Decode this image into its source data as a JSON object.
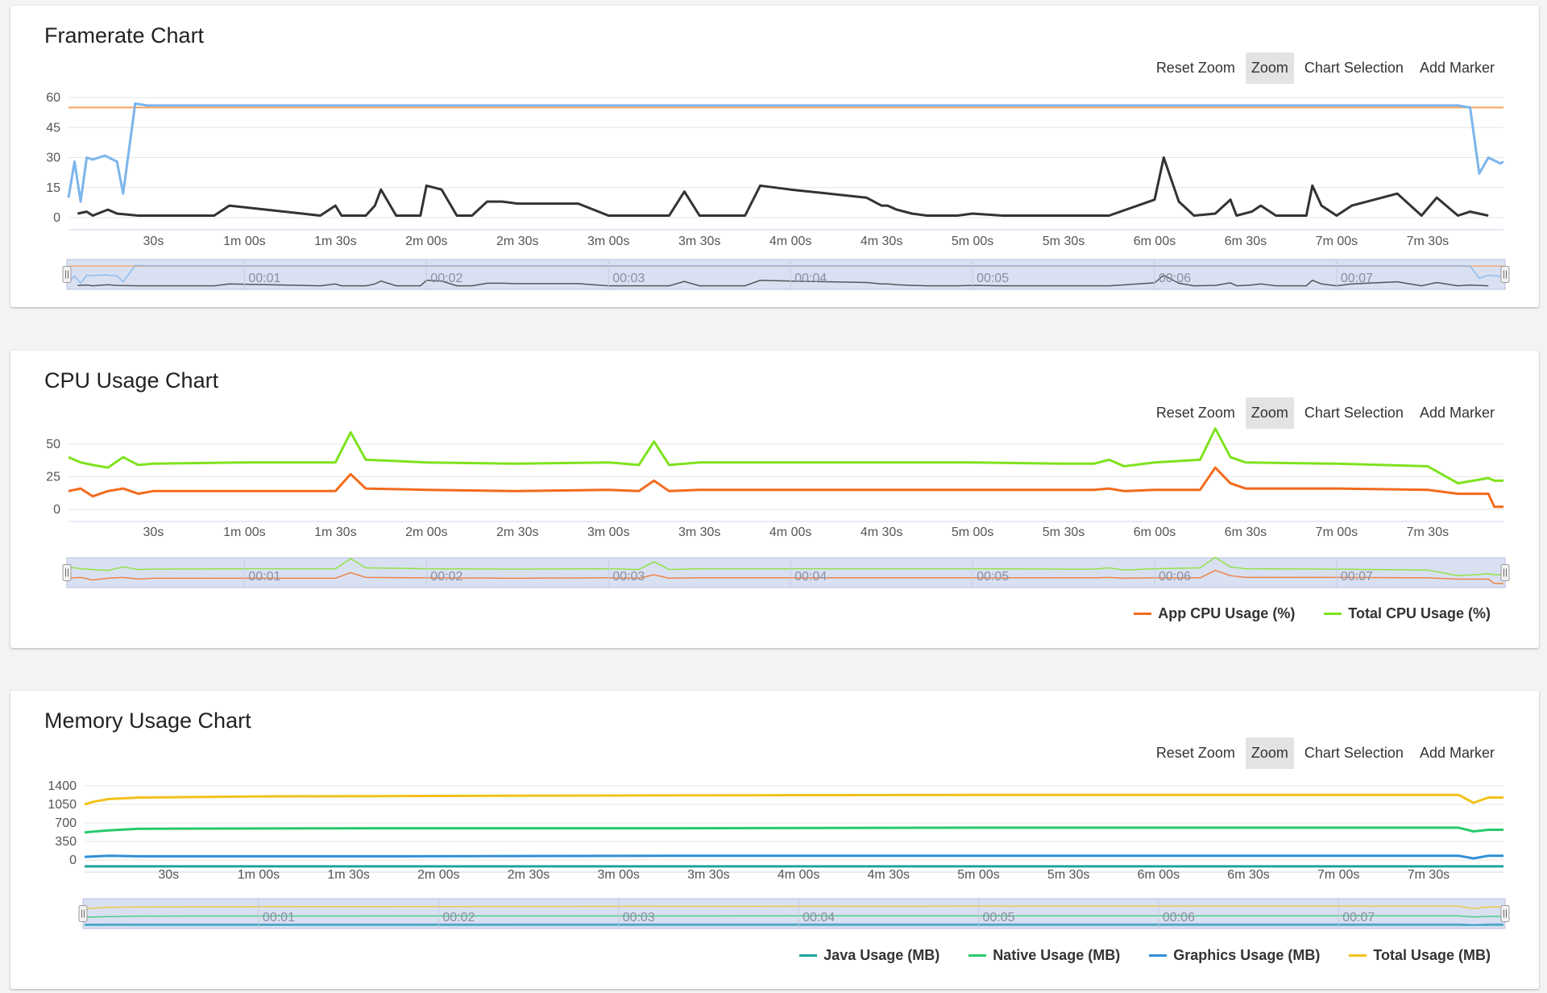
{
  "toolbar": {
    "reset_zoom": "Reset Zoom",
    "zoom": "Zoom",
    "chart_selection": "Chart Selection",
    "add_marker": "Add Marker"
  },
  "x_ticks": [
    "30s",
    "1m 00s",
    "1m 30s",
    "2m 00s",
    "2m 30s",
    "3m 00s",
    "3m 30s",
    "4m 00s",
    "4m 30s",
    "5m 00s",
    "5m 30s",
    "6m 00s",
    "6m 30s",
    "7m 00s",
    "7m 30s"
  ],
  "nav_labels": [
    "00:01",
    "00:02",
    "00:03",
    "00:04",
    "00:05",
    "00:06",
    "00:07"
  ],
  "colors": {
    "fps": "#7cb5ec",
    "fps_target": "#f7a35c",
    "jank": "#333333",
    "app_cpu": "#f26b1d",
    "total_cpu": "#7ee21d",
    "java": "#1aa5a0",
    "native": "#27c96b",
    "graphics": "#2f8fd6",
    "total_mem": "#f2c21b",
    "navigator_fill": "#ccd5ee"
  },
  "chart_data": [
    {
      "type": "line",
      "title": "Framerate Chart",
      "x_unit": "seconds",
      "xlim": [
        2,
        475
      ],
      "ylim": [
        0,
        60
      ],
      "y_ticks": [
        0,
        15,
        30,
        45,
        60
      ],
      "grid": true,
      "legend": "none",
      "series": [
        {
          "x": [
            475
          ],
          "y": [
            55
          ]
        },
        {
          "x": [
            2,
            4,
            6,
            8,
            10,
            14,
            18,
            20,
            24,
            28,
            36,
            60,
            90,
            120,
            150,
            180,
            210,
            240,
            270,
            300,
            330,
            360,
            390,
            420,
            450,
            460,
            464,
            467,
            470,
            474,
            475
          ],
          "y": [
            10,
            28,
            8,
            30,
            29,
            31,
            28,
            12,
            57,
            56,
            56,
            56,
            56,
            56,
            56,
            56,
            56,
            56,
            56,
            56,
            56,
            56,
            56,
            56,
            56,
            56,
            55,
            22,
            30,
            27,
            28
          ]
        },
        {
          "x": [
            5,
            8,
            10,
            15,
            18,
            25,
            30,
            50,
            55,
            85,
            90,
            92,
            95,
            100,
            103,
            105,
            110,
            115,
            118,
            120,
            125,
            130,
            135,
            140,
            145,
            150,
            170,
            180,
            200,
            205,
            210,
            225,
            230,
            240,
            265,
            270,
            272,
            275,
            280,
            285,
            290,
            295,
            300,
            310,
            345,
            360,
            363,
            368,
            373,
            380,
            385,
            387,
            392,
            395,
            400,
            405,
            410,
            412,
            415,
            420,
            425,
            440,
            448,
            453,
            460,
            464,
            470
          ],
          "y": [
            2,
            3,
            1,
            4,
            2,
            1,
            1,
            1,
            6,
            1,
            6,
            1,
            1,
            1,
            6,
            14,
            1,
            1,
            1,
            16,
            14,
            1,
            1,
            8,
            8,
            7,
            7,
            1,
            1,
            13,
            1,
            1,
            16,
            14,
            10,
            6,
            6,
            4,
            2,
            1,
            1,
            1,
            2,
            1,
            1,
            9,
            30,
            8,
            1,
            2,
            9,
            1,
            3,
            6,
            1,
            1,
            1,
            16,
            6,
            1,
            6,
            12,
            1,
            10,
            1,
            3,
            1
          ]
        }
      ]
    },
    {
      "type": "line",
      "title": "CPU Usage Chart",
      "x_unit": "seconds",
      "xlim": [
        2,
        475
      ],
      "ylim": [
        0,
        50
      ],
      "y_ticks": [
        0,
        25,
        50
      ],
      "grid": true,
      "legend": "bottom-right",
      "series": [
        {
          "name": "App CPU Usage (%)",
          "x": [
            2,
            6,
            10,
            15,
            20,
            25,
            30,
            60,
            90,
            90,
            95,
            100,
            120,
            150,
            180,
            190,
            195,
            200,
            210,
            240,
            270,
            300,
            330,
            340,
            345,
            350,
            360,
            375,
            380,
            385,
            390,
            420,
            450,
            460,
            470,
            472,
            475
          ],
          "y": [
            14,
            16,
            10,
            14,
            16,
            12,
            14,
            14,
            14,
            14,
            27,
            16,
            15,
            14,
            15,
            14,
            22,
            14,
            15,
            15,
            15,
            15,
            15,
            15,
            16,
            14,
            15,
            15,
            32,
            20,
            16,
            16,
            15,
            12,
            12,
            2,
            2
          ]
        },
        {
          "name": "Total CPU Usage (%)",
          "x": [
            2,
            6,
            10,
            15,
            20,
            25,
            30,
            60,
            90,
            90,
            95,
            100,
            120,
            150,
            180,
            190,
            195,
            200,
            210,
            240,
            270,
            300,
            330,
            340,
            345,
            350,
            360,
            375,
            380,
            385,
            390,
            420,
            450,
            460,
            470,
            472,
            475
          ],
          "y": [
            40,
            36,
            34,
            32,
            40,
            34,
            35,
            36,
            36,
            36,
            59,
            38,
            36,
            35,
            36,
            34,
            52,
            34,
            36,
            36,
            36,
            36,
            35,
            35,
            38,
            33,
            36,
            38,
            62,
            40,
            36,
            35,
            33,
            20,
            24,
            22,
            22
          ]
        }
      ]
    },
    {
      "type": "line",
      "title": "Memory Usage Chart",
      "x_unit": "seconds",
      "xlim": [
        2,
        475
      ],
      "ylim": [
        0,
        1400
      ],
      "y_ticks": [
        0,
        350,
        700,
        1050,
        1400
      ],
      "grid": true,
      "legend": "bottom-right",
      "series": [
        {
          "name": "Java Usage (MB)",
          "x": [
            2,
            100,
            200,
            300,
            400,
            460,
            470,
            475
          ],
          "y": [
            -120,
            -120,
            -120,
            -120,
            -120,
            -120,
            -120,
            -120
          ]
        },
        {
          "name": "Native Usage (MB)",
          "x": [
            2,
            10,
            20,
            100,
            200,
            300,
            400,
            460,
            465,
            470,
            475
          ],
          "y": [
            520,
            560,
            590,
            600,
            600,
            610,
            610,
            610,
            540,
            570,
            570
          ]
        },
        {
          "name": "Graphics Usage (MB)",
          "x": [
            2,
            10,
            20,
            100,
            200,
            300,
            400,
            460,
            465,
            470,
            475
          ],
          "y": [
            60,
            80,
            70,
            70,
            80,
            80,
            80,
            80,
            30,
            80,
            80
          ]
        },
        {
          "name": "Total Usage (MB)",
          "x": [
            2,
            5,
            10,
            20,
            60,
            120,
            200,
            300,
            400,
            460,
            465,
            470,
            475
          ],
          "y": [
            1050,
            1100,
            1150,
            1180,
            1200,
            1210,
            1220,
            1230,
            1230,
            1230,
            1080,
            1180,
            1180
          ]
        }
      ]
    }
  ]
}
